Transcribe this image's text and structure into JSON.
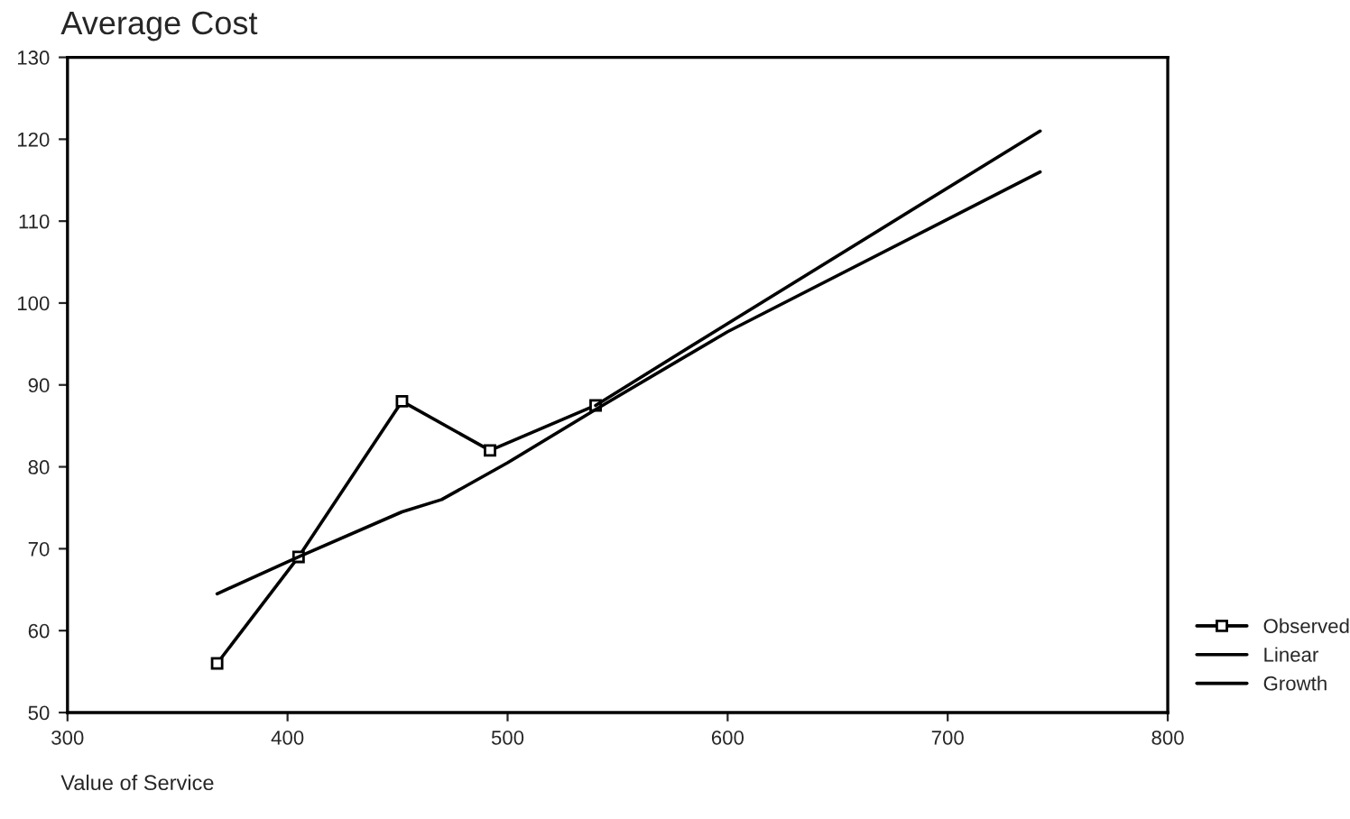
{
  "chart_data": {
    "type": "line",
    "title": "Average Cost",
    "xlabel": "Value of Service",
    "series": [
      {
        "name": "Observed",
        "color": "#000000",
        "marker": "square",
        "x": [
          368,
          405,
          452,
          492,
          540
        ],
        "values": [
          56,
          69,
          88,
          82,
          87.5
        ]
      },
      {
        "name": "Linear",
        "color": "#000000",
        "x": [
          368,
          405,
          452,
          470,
          500,
          540,
          600,
          742
        ],
        "values": [
          64.5,
          69,
          74.5,
          76,
          80.5,
          87,
          96.5,
          116
        ]
      },
      {
        "name": "Growth",
        "color": "#000000",
        "x": [
          540,
          600,
          742
        ],
        "values": [
          87.5,
          97.5,
          121
        ]
      }
    ],
    "xlim": [
      300,
      800
    ],
    "xticks": [
      300,
      400,
      500,
      600,
      700,
      800
    ],
    "ylim": [
      50,
      130
    ],
    "yticks": [
      50,
      60,
      70,
      80,
      90,
      100,
      110,
      120,
      130
    ],
    "grid": false,
    "legend": "bottom right",
    "marker": "none",
    "line_style": "solid"
  }
}
